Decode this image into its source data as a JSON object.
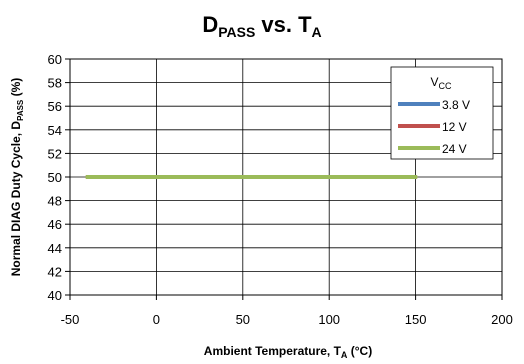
{
  "chart_data": {
    "type": "line",
    "title": {
      "main": "D",
      "main_sub": "PASS",
      "mid": " vs. T",
      "mid_sub": "A"
    },
    "xlabel": {
      "main": "Ambient Temperature, T",
      "sub": "A",
      "suffix": " (°C)"
    },
    "ylabel": {
      "main": "Normal DIAG Duty Cycle,  D",
      "sub": "PASS",
      "suffix": " (%)"
    },
    "xlim": [
      -50,
      200
    ],
    "ylim": [
      40,
      60
    ],
    "x_ticks": [
      -50,
      0,
      50,
      100,
      150,
      200
    ],
    "y_ticks": [
      40,
      42,
      44,
      46,
      48,
      50,
      52,
      54,
      56,
      58,
      60
    ],
    "grid": true,
    "legend": {
      "title_main": "V",
      "title_sub": "CC",
      "position": "top-right"
    },
    "series": [
      {
        "name": "3.8 V",
        "color": "#4F81BD",
        "x": [
          -40,
          150
        ],
        "y": [
          50,
          50
        ]
      },
      {
        "name": "12 V",
        "color": "#C0504D",
        "x": [
          -40,
          150
        ],
        "y": [
          50,
          50
        ]
      },
      {
        "name": "24 V",
        "color": "#9BBB59",
        "x": [
          -40,
          150
        ],
        "y": [
          50,
          50
        ]
      }
    ]
  }
}
